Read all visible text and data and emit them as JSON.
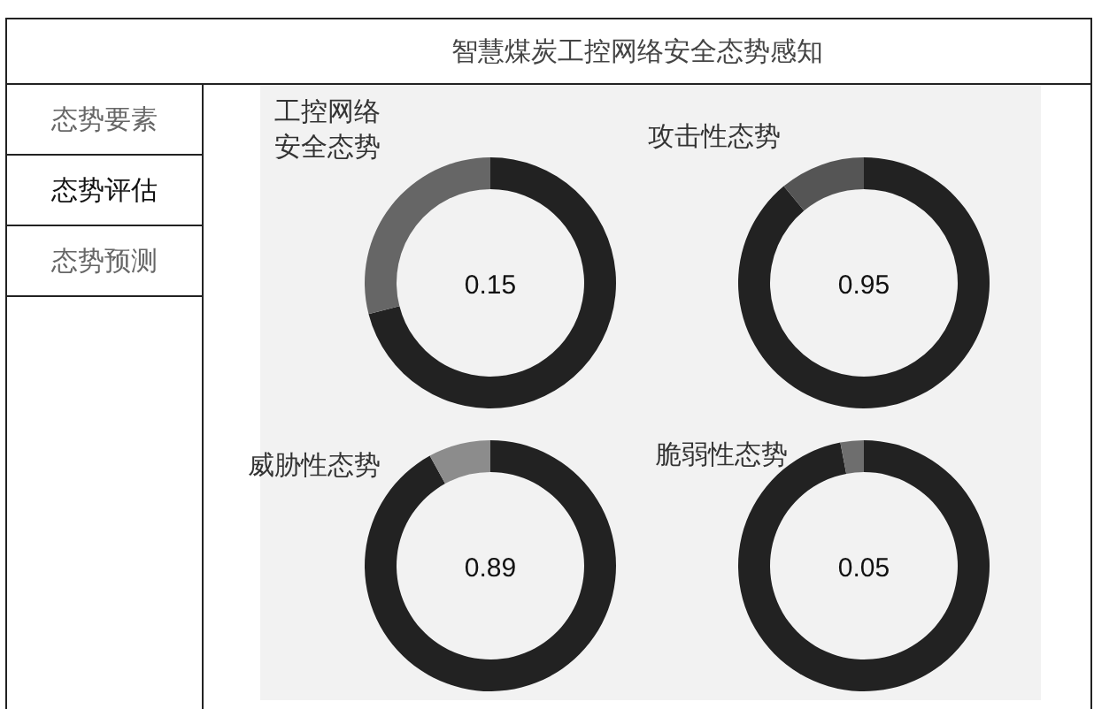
{
  "chart_data": [
    {
      "type": "other",
      "title": "智慧煤炭工控网络安全态势感知",
      "annotations": [
        "态势要素",
        "态势评估",
        "态势预测"
      ]
    },
    {
      "type": "donut",
      "title": "工控网络安全态势",
      "categories": [
        null,
        null
      ],
      "values": [
        71,
        29
      ],
      "colors": [
        "#222222",
        "#666666"
      ],
      "annotations": [
        "0.15"
      ]
    },
    {
      "type": "donut",
      "title": "攻击性态势",
      "categories": [
        null,
        null
      ],
      "values": [
        89,
        11
      ],
      "colors": [
        "#222222",
        "#555555"
      ],
      "annotations": [
        "0.95"
      ]
    },
    {
      "type": "donut",
      "title": "威胁性态势",
      "categories": [
        null,
        null
      ],
      "values": [
        92,
        8
      ],
      "colors": [
        "#222222",
        "#8c8c8c"
      ],
      "annotations": [
        "0.89"
      ]
    },
    {
      "type": "donut",
      "title": "脆弱性态势",
      "categories": [
        null,
        null
      ],
      "values": [
        97,
        3
      ],
      "colors": [
        "#222222",
        "#6e6e6e"
      ],
      "annotations": [
        "0.05"
      ]
    }
  ]
}
